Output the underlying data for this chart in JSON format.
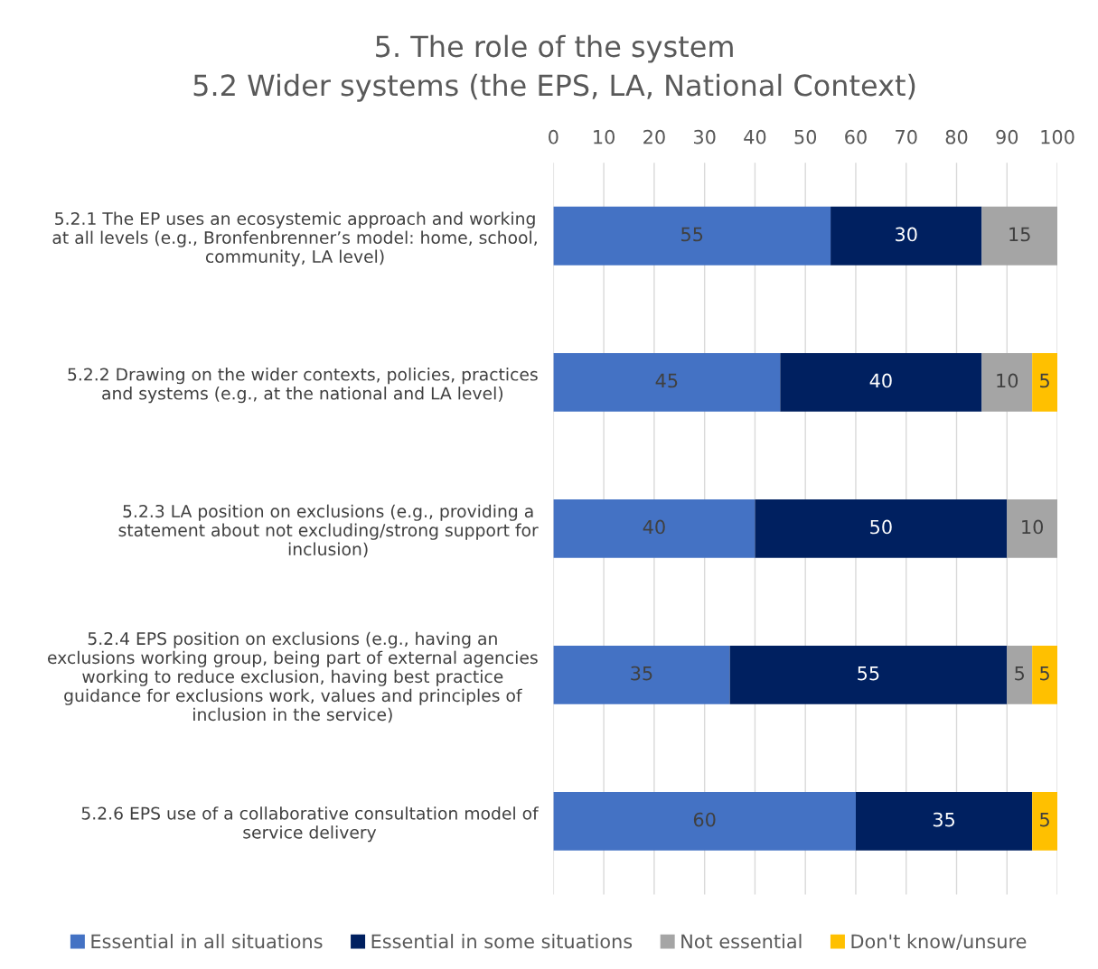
{
  "chart_data": {
    "type": "bar",
    "orientation": "horizontal",
    "stacked": true,
    "title": "5. The role of the system\n5.2 Wider systems (the EPS, LA, National Context)",
    "categories": [
      "5.2.1 The EP uses an ecosystemic approach and working\nat all levels (e.g., Bronfenbrenner’s model: home, school,\ncommunity, LA level)",
      "5.2.2 Drawing on the wider contexts, policies, practices\nand systems (e.g., at the national and LA level)",
      "5.2.3 LA position on exclusions (e.g., providing a\nstatement about not excluding/strong support for\ninclusion)",
      "5.2.4 EPS position on exclusions (e.g., having an\nexclusions working group, being part of external agencies\nworking to reduce exclusion, having best practice\nguidance for exclusions work, values and principles of\ninclusion in the service)",
      "5.2.6 EPS use of a collaborative consultation model of\nservice delivery"
    ],
    "series": [
      {
        "name": "Essential in all situations",
        "color": "#4472c4",
        "values": [
          55,
          45,
          40,
          35,
          60
        ]
      },
      {
        "name": "Essential in some situations",
        "color": "#002060",
        "values": [
          30,
          40,
          50,
          55,
          35
        ]
      },
      {
        "name": "Not essential",
        "color": "#a5a5a5",
        "values": [
          15,
          10,
          10,
          5,
          null
        ]
      },
      {
        "name": "Don't know/unsure",
        "color": "#ffc000",
        "values": [
          null,
          5,
          null,
          5,
          5
        ]
      }
    ],
    "xlim": [
      0,
      100
    ],
    "xticks": [
      0,
      10,
      20,
      30,
      40,
      50,
      60,
      70,
      80,
      90,
      100
    ],
    "grid": "x",
    "legend": "bottom",
    "data_labels": true
  }
}
